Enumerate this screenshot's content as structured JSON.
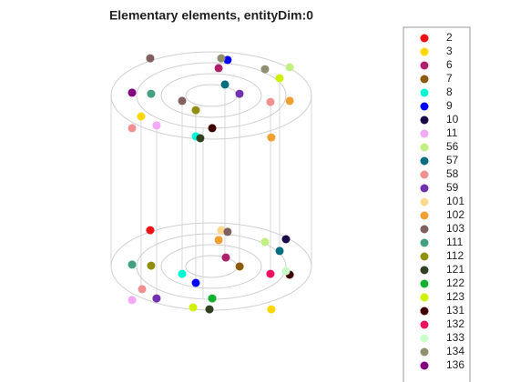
{
  "chart_data": {
    "type": "scatter",
    "title": "Elementary elements, entityDim:0",
    "xlim": [
      0,
      100
    ],
    "ylim": [
      0,
      100
    ],
    "grid": false,
    "legend": "right",
    "series": [
      {
        "name": "2",
        "color": "#ee1111",
        "x": [
          22.9
        ],
        "y": [
          32.3
        ]
      },
      {
        "name": "3",
        "color": "#ffd700",
        "x": [
          78.3,
          18.75
        ],
        "y": [
          3.3,
          74
        ]
      },
      {
        "name": "6",
        "color": "#b0206a",
        "x": [
          57.5,
          54.2
        ],
        "y": [
          22.3,
          91.7
        ]
      },
      {
        "name": "7",
        "color": "#8b5a0b",
        "x": [
          63.8
        ],
        "y": [
          19
        ]
      },
      {
        "name": "8",
        "color": "#00f5d4",
        "x": [
          37.5,
          43.75
        ],
        "y": [
          16.3,
          66.7
        ]
      },
      {
        "name": "9",
        "color": "#0000ff",
        "x": [
          43.75,
          58.3
        ],
        "y": [
          13,
          94.7
        ]
      },
      {
        "name": "10",
        "color": "#1a0a4a",
        "x": [
          85
        ],
        "y": [
          29
        ]
      },
      {
        "name": "11",
        "color": "#f5a8f5",
        "x": [
          14.6,
          25.8
        ],
        "y": [
          6.7,
          70.7
        ]
      },
      {
        "name": "56",
        "color": "#c0f080",
        "x": [
          75.4,
          86.7
        ],
        "y": [
          28,
          92
        ]
      },
      {
        "name": "57",
        "color": "#006d80",
        "x": [
          82.1,
          57.1
        ],
        "y": [
          24.7,
          85.7
        ]
      },
      {
        "name": "58",
        "color": "#f09090",
        "x": [
          19.2,
          77.9,
          14.6
        ],
        "y": [
          10.7,
          79.3,
          69.7
        ]
      },
      {
        "name": "59",
        "color": "#7030b0",
        "x": [
          25.8,
          63.75
        ],
        "y": [
          7.3,
          82.3
        ]
      },
      {
        "name": "101",
        "color": "#ffd890",
        "x": [
          55.4
        ],
        "y": [
          32.3
        ]
      },
      {
        "name": "102",
        "color": "#f0a030",
        "x": [
          54.2,
          78.3,
          86.7
        ],
        "y": [
          28.7,
          66.3,
          79.7
        ]
      },
      {
        "name": "103",
        "color": "#806060",
        "x": [
          58.3,
          37.5,
          22.9
        ],
        "y": [
          31.7,
          79.7,
          95.3
        ]
      },
      {
        "name": "111",
        "color": "#40a080",
        "x": [
          14.6,
          23.3
        ],
        "y": [
          19.7,
          82.3
        ]
      },
      {
        "name": "112",
        "color": "#909010",
        "x": [
          23.3,
          43.75
        ],
        "y": [
          19.3,
          76.3
        ]
      },
      {
        "name": "121",
        "color": "#304020",
        "x": [
          50,
          45.8
        ],
        "y": [
          3.3,
          66
        ]
      },
      {
        "name": "122",
        "color": "#10b030",
        "x": [
          51.25
        ],
        "y": [
          7.3
        ]
      },
      {
        "name": "123",
        "color": "#d0f000",
        "x": [
          42.5,
          82.1
        ],
        "y": [
          4,
          88
        ]
      },
      {
        "name": "131",
        "color": "#400000",
        "x": [
          86.7,
          51.25
        ],
        "y": [
          16,
          69.7
        ]
      },
      {
        "name": "132",
        "color": "#f01060",
        "x": [
          77.9
        ],
        "y": [
          16.3
        ]
      },
      {
        "name": "133",
        "color": "#c8ffc8",
        "x": [
          85
        ],
        "y": [
          17.3
        ]
      },
      {
        "name": "134",
        "color": "#909070",
        "x": [
          55.4,
          75.4
        ],
        "y": [
          95.3,
          91.3
        ]
      },
      {
        "name": "136",
        "color": "#800080",
        "x": [
          14.6
        ],
        "y": [
          82.7
        ]
      }
    ]
  }
}
